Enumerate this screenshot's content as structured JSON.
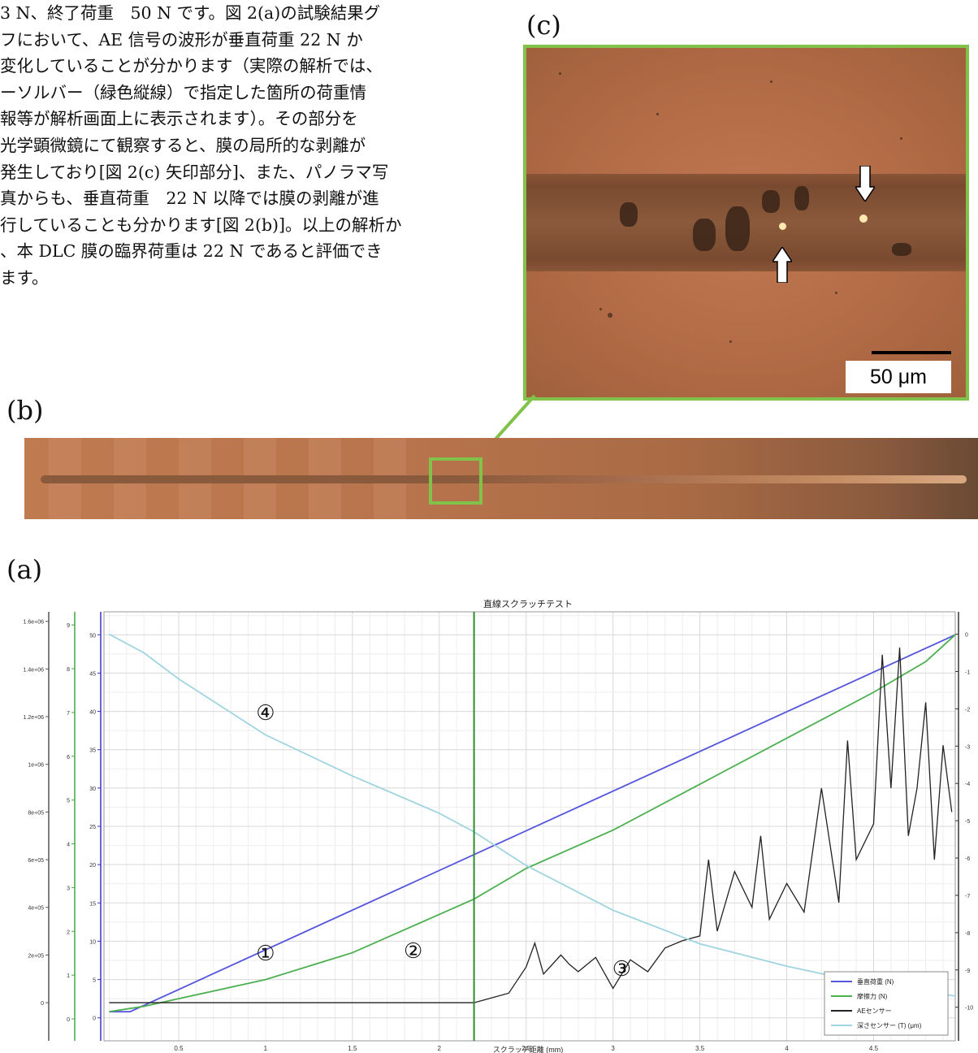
{
  "body_text": [
    "3 N、終了荷重　50 N です。図 2(a)の試験結果グ",
    "フにおいて、AE 信号の波形が垂直荷重 22 N か",
    "変化していることが分かります（実際の解析では、",
    "ーソルバー（緑色縦線）で指定した箇所の荷重情",
    "報等が解析画面上に表示されます）。その部分を",
    "光学顕微鏡にて観察すると、膜の局所的な剥離が",
    "発生しており[図 2(c) 矢印部分]、また、パノラマ写",
    "真からも、垂直荷重　22 N 以降では膜の剥離が進",
    "行していることも分かります[図 2(b)]。以上の解析か",
    "、本 DLC 膜の臨界荷重は 22 N であると評価でき",
    "ます。"
  ],
  "panels": {
    "a": "(a)",
    "b": "(b)",
    "c": "(c)"
  },
  "scale_bar_label": "50 μm",
  "accent_color": "#80c24a",
  "chart_data": {
    "type": "line",
    "title": "直線スクラッチテスト",
    "xlabel": "スクラッチ距離 (mm)",
    "xlim": [
      0.07,
      4.97
    ],
    "xticks": [
      0.5,
      1,
      1.5,
      2,
      2.5,
      3,
      3.5,
      4,
      4.5
    ],
    "cursor_x": 2.2,
    "axes": {
      "ae": {
        "ylim": [
          -160000,
          1640000
        ],
        "ticks": [
          0,
          200000,
          400000,
          600000,
          800000,
          1000000,
          1200000,
          1400000,
          1600000
        ],
        "tick_labels": [
          "0",
          "2e+05",
          "4e+05",
          "6e+05",
          "8e+05",
          "1e+06",
          "1.2e+06",
          "1.4e+06",
          "1.6e+06"
        ],
        "color": "#555555"
      },
      "friction": {
        "ylim": [
          -0.5,
          9.3
        ],
        "ticks": [
          0,
          1,
          2,
          3,
          4,
          5,
          6,
          7,
          8,
          9
        ],
        "tick_labels": [
          "0",
          "1",
          "2",
          "3",
          "4",
          "5",
          "6",
          "7",
          "8",
          "9"
        ],
        "color": "#44aa44"
      },
      "load": {
        "ylim": [
          -3,
          53
        ],
        "ticks": [
          0,
          5,
          10,
          15,
          20,
          25,
          30,
          35,
          40,
          45,
          50
        ],
        "tick_labels": [
          "0",
          "5",
          "10",
          "15",
          "20",
          "25",
          "30",
          "35",
          "40",
          "45",
          "50"
        ],
        "color": "#3333cc"
      },
      "depth": {
        "ylim": [
          -10.9,
          0.6
        ],
        "ticks": [
          0,
          -1,
          -2,
          -3,
          -4,
          -5,
          -6,
          -7,
          -8,
          -9,
          -10
        ],
        "tick_labels": [
          "0",
          "-1",
          "-2",
          "-3",
          "-4",
          "-5",
          "-6",
          "-7",
          "-8",
          "-9",
          "-10"
        ],
        "color": "#333333"
      }
    },
    "series": [
      {
        "name": "垂直荷重 (N)",
        "axis": "load",
        "color": "#5555dd",
        "label": "①",
        "x": [
          0.1,
          0.22,
          4.97
        ],
        "y": [
          0.8,
          0.8,
          50
        ]
      },
      {
        "name": "摩擦力 (N)",
        "axis": "load",
        "color": "#4caf50",
        "label": "②",
        "x": [
          0.1,
          0.3,
          0.5,
          1.0,
          1.5,
          2.0,
          2.2,
          2.5,
          3.0,
          3.5,
          4.0,
          4.5,
          4.8,
          4.97
        ],
        "y": [
          0.8,
          1.5,
          2.5,
          5.0,
          8.5,
          13.5,
          15.5,
          19.5,
          24.5,
          30.5,
          36.5,
          42.5,
          46.5,
          50
        ]
      },
      {
        "name": "AEセンサー",
        "axis": "ae",
        "color": "#222222",
        "label": "③",
        "x": [
          0.1,
          2.2,
          2.3,
          2.4,
          2.5,
          2.55,
          2.6,
          2.7,
          2.75,
          2.8,
          2.9,
          3.0,
          3.05,
          3.1,
          3.2,
          3.3,
          3.4,
          3.5,
          3.55,
          3.6,
          3.7,
          3.8,
          3.85,
          3.9,
          4.0,
          4.1,
          4.2,
          4.3,
          4.35,
          4.4,
          4.5,
          4.55,
          4.6,
          4.65,
          4.7,
          4.75,
          4.8,
          4.85,
          4.9,
          4.95
        ],
        "y": [
          0,
          0,
          20000,
          40000,
          150000,
          250000,
          120000,
          200000,
          160000,
          130000,
          190000,
          60000,
          120000,
          180000,
          130000,
          230000,
          260000,
          280000,
          600000,
          300000,
          550000,
          400000,
          700000,
          350000,
          500000,
          380000,
          900000,
          420000,
          1100000,
          600000,
          750000,
          1460000,
          900000,
          1490000,
          700000,
          900000,
          1260000,
          600000,
          1080000,
          800000
        ]
      },
      {
        "name": "深さセンサー (T) (μm)",
        "axis": "depth",
        "color": "#9fd4e0",
        "label": "④",
        "x": [
          0.1,
          0.3,
          0.5,
          1.0,
          1.5,
          2.0,
          2.2,
          2.5,
          3.0,
          3.5,
          4.0,
          4.5,
          4.97
        ],
        "y": [
          0,
          -0.5,
          -1.2,
          -2.7,
          -3.8,
          -4.8,
          -5.3,
          -6.2,
          -7.4,
          -8.3,
          -8.9,
          -9.4,
          -9.7
        ]
      }
    ],
    "grid": true,
    "legend_position": "bottom-right"
  }
}
